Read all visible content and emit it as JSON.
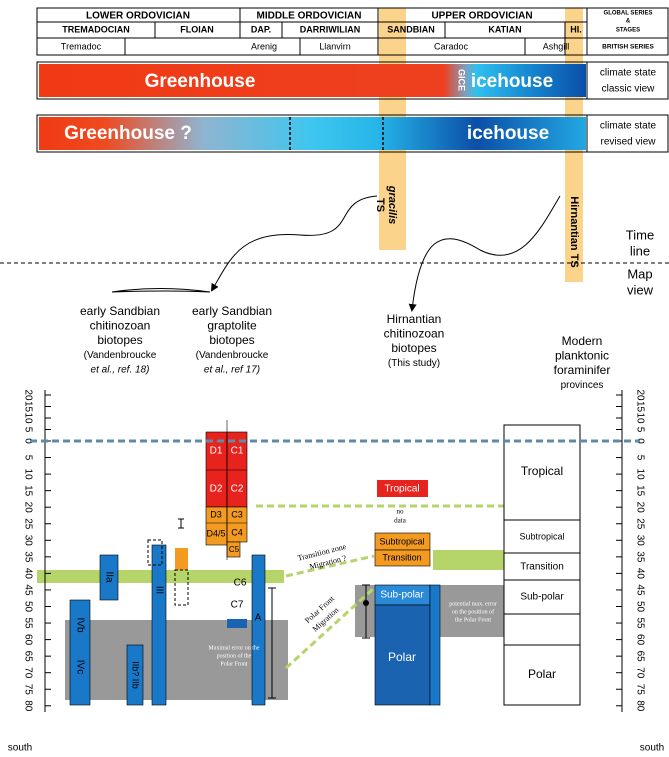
{
  "header": {
    "series": [
      "LOWER ORDOVICIAN",
      "MIDDLE ORDOVICIAN",
      "UPPER ORDOVICIAN"
    ],
    "series_caption": [
      "GLOBAL SERIES",
      "&",
      "STAGES"
    ],
    "stages": [
      "TREMADOCIAN",
      "FLOIAN",
      "DAP.",
      "DARRIWILIAN",
      "SANDBIAN",
      "KATIAN",
      "HI."
    ],
    "british": [
      "Tremadoc",
      "Arenig",
      "Llanvirn",
      "Caradoc",
      "Ashgill"
    ],
    "british_caption": "BRITISH SERIES"
  },
  "classic_bar": {
    "left": "Greenhouse",
    "event": "GICE",
    "right": "icehouse",
    "caption": [
      "climate state",
      "classic view"
    ]
  },
  "revised_bar": {
    "left": "Greenhouse ?",
    "right": "icehouse",
    "caption": [
      "climate state",
      "revised view"
    ]
  },
  "time_slices": {
    "gracilis": [
      "gracilis",
      "TS"
    ],
    "hirnantian": "Hirnantian TS"
  },
  "divider": {
    "upper": [
      "Time",
      "line"
    ],
    "lower": [
      "Map",
      "view"
    ]
  },
  "columns": {
    "chitinozoan": [
      "early Sandbian",
      "chitinozoan",
      "biotopes",
      "(Vandenbroucke",
      "et al., ref. 18)"
    ],
    "graptolite": [
      "early Sandbian",
      "graptolite",
      "biotopes",
      "(Vandenbroucke",
      "et al., ref 17)"
    ],
    "hirnantian": [
      "Hirnantian",
      "chitinozoan",
      "biotopes",
      "(This study)"
    ],
    "modern": [
      "Modern",
      "planktonic",
      "foraminifer",
      "provinces"
    ]
  },
  "latitude_axis": {
    "north_ticks": [
      20,
      15,
      10,
      5
    ],
    "equator": 0,
    "south_ticks": [
      5,
      10,
      15,
      20,
      25,
      30,
      35,
      40,
      45,
      50,
      55,
      60,
      65,
      70,
      75,
      80
    ],
    "label": "south"
  },
  "graptolite_zones": {
    "d": [
      "D1",
      "D2",
      "D3",
      "D4/5"
    ],
    "c": [
      "C1",
      "C2",
      "C3",
      "C4",
      "C5",
      "C6",
      "C7"
    ],
    "a": "A"
  },
  "chitinozoan_zones": [
    "IIa",
    "IVb",
    "III",
    "IVc",
    "IIb? IIb"
  ],
  "annotations": {
    "transition": [
      "Transition zone",
      "Migration ?"
    ],
    "polar_front": [
      "Polar Front",
      "Migration"
    ],
    "max_error_left": [
      "Maximal error on the",
      "position of the",
      "Polar Front"
    ],
    "max_error_right": [
      "potential max. error",
      "on the position of",
      "the Polar Front"
    ]
  },
  "hirnantian_zones": {
    "tropical": "Tropical",
    "no_data": [
      "no",
      "data"
    ],
    "subtropical": "Subtropical",
    "transition": "Transition",
    "subpolar": "Sub-polar",
    "polar": "Polar"
  },
  "modern_provinces": [
    "Tropical",
    "Subtropical",
    "Transition",
    "Sub-polar",
    "Polar"
  ]
}
